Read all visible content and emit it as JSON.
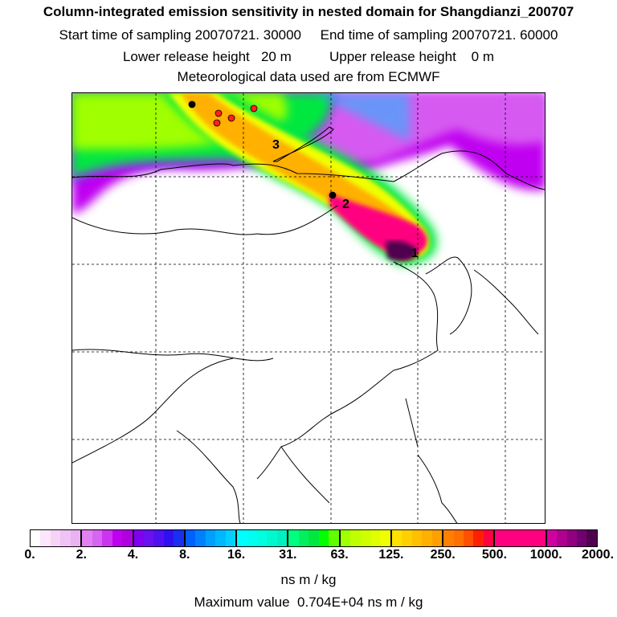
{
  "header": {
    "title": "Column-integrated emission sensitivity in nested domain for Shangdianzi_200707",
    "sampling_line": "Start time of sampling 20070721. 30000     End time of sampling 20070721. 60000",
    "release_line": "Lower release height   20 m          Upper release height    0 m",
    "met_line": "Meteorological data used are from ECMWF"
  },
  "map": {
    "point_labels": [
      "1",
      "2",
      "3"
    ],
    "marker_colors": {
      "black": "#000000",
      "red": "#ff2020"
    }
  },
  "colorbar": {
    "ticks": [
      "0.",
      "2.",
      "4.",
      "8.",
      "16.",
      "31.",
      "63.",
      "125.",
      "250.",
      "500.",
      "1000.",
      "2000."
    ],
    "colors": [
      "#ffffff",
      "#fbe6fb",
      "#f6d4f6",
      "#f0c2f5",
      "#eab2f2",
      "#e080f2",
      "#d864f2",
      "#cc34f2",
      "#c000f0",
      "#b000e0",
      "#8000f0",
      "#6a10f0",
      "#5010f0",
      "#3010f0",
      "#1a30f0",
      "#0060ff",
      "#0080ff",
      "#00a0ff",
      "#00b8ff",
      "#00d0ff",
      "#00ffff",
      "#00fff0",
      "#00ffe0",
      "#00f8d0",
      "#00f0c0",
      "#00ff80",
      "#00f060",
      "#00e840",
      "#00ff00",
      "#60ff00",
      "#a0ff00",
      "#c0ff00",
      "#d0ff00",
      "#e0ff00",
      "#f0ff00",
      "#ffe000",
      "#ffd000",
      "#ffc000",
      "#ffb000",
      "#ffa000",
      "#ff8000",
      "#ff7000",
      "#ff5000",
      "#ff2000",
      "#ff0040",
      "#ff0080",
      "#ff0080",
      "#ff0080",
      "#ff0080",
      "#ff0080",
      "#d000a0",
      "#b00090",
      "#900080",
      "#700070",
      "#500050"
    ],
    "units": "ns m / kg",
    "max_value": "Maximum value  0.704E+04 ns m / kg"
  }
}
